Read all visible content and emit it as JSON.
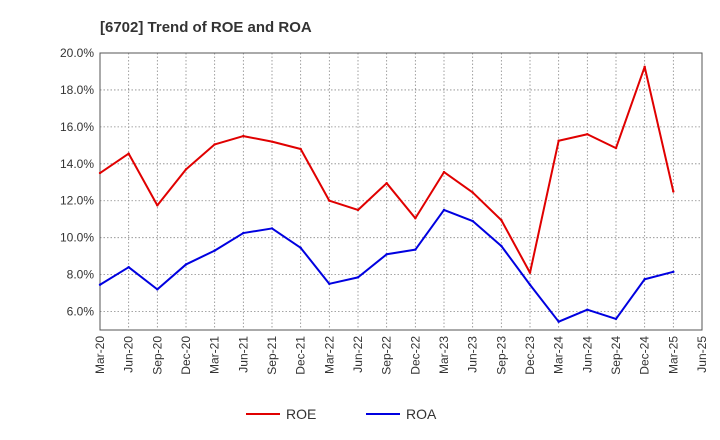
{
  "chart_data": {
    "type": "line",
    "title": "[6702]  Trend of ROE and ROA",
    "xlabel": "",
    "ylabel": "",
    "ylim": [
      5.0,
      20.0
    ],
    "y_ticks": [
      {
        "value": 6,
        "label": "6.0%"
      },
      {
        "value": 8,
        "label": "8.0%"
      },
      {
        "value": 10,
        "label": "10.0%"
      },
      {
        "value": 12,
        "label": "12.0%"
      },
      {
        "value": 14,
        "label": "14.0%"
      },
      {
        "value": 16,
        "label": "16.0%"
      },
      {
        "value": 18,
        "label": "18.0%"
      },
      {
        "value": 20,
        "label": "20.0%"
      }
    ],
    "categories": [
      "Mar-20",
      "Jun-20",
      "Sep-20",
      "Dec-20",
      "Mar-21",
      "Jun-21",
      "Sep-21",
      "Dec-21",
      "Mar-22",
      "Jun-22",
      "Sep-22",
      "Dec-22",
      "Mar-23",
      "Jun-23",
      "Sep-23",
      "Dec-23",
      "Mar-24",
      "Jun-24",
      "Sep-24",
      "Dec-24",
      "Mar-25",
      "Jun-25"
    ],
    "grid": true,
    "legend_position": "bottom-center",
    "series": [
      {
        "name": "ROE",
        "color": "#e00000",
        "values": [
          13.5,
          14.55,
          11.75,
          13.7,
          15.05,
          15.5,
          15.2,
          14.8,
          12.0,
          11.5,
          12.95,
          11.05,
          13.55,
          12.45,
          10.95,
          8.1,
          15.25,
          15.6,
          14.85,
          19.25,
          12.5,
          null
        ]
      },
      {
        "name": "ROA",
        "color": "#0000e0",
        "values": [
          7.45,
          8.4,
          7.2,
          8.55,
          9.3,
          10.25,
          10.5,
          9.45,
          7.5,
          7.85,
          9.1,
          9.35,
          11.5,
          10.9,
          9.55,
          7.45,
          5.45,
          6.1,
          5.6,
          7.75,
          8.15,
          null
        ]
      }
    ]
  }
}
